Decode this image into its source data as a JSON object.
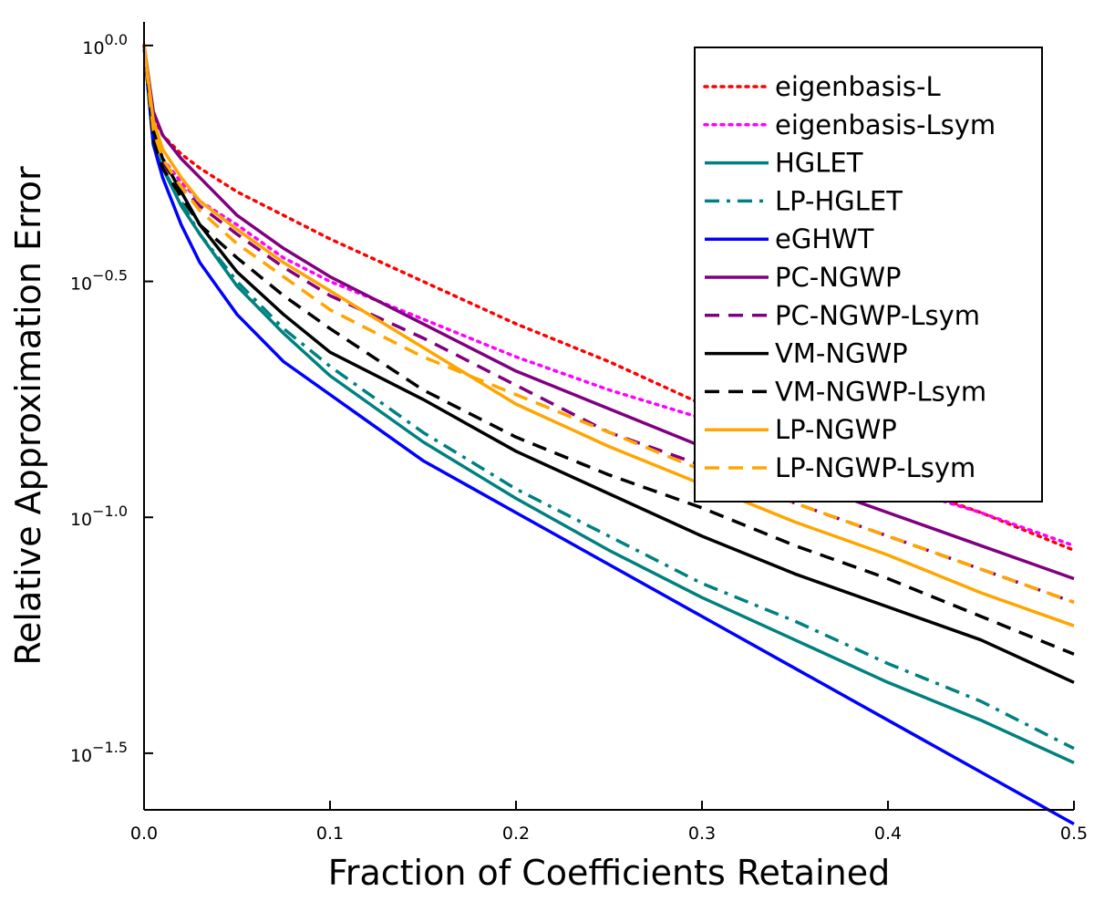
{
  "chart_data": {
    "type": "line",
    "title": "",
    "xlabel": "Fraction of Coefficients Retained",
    "ylabel": "Relative Approximation Error",
    "y_scale": "log10",
    "xlim": [
      0.0,
      0.5
    ],
    "ylim_log10": [
      -1.62,
      0.05
    ],
    "x_ticks": [
      {
        "value": 0.0,
        "label": "0.0"
      },
      {
        "value": 0.1,
        "label": "0.1"
      },
      {
        "value": 0.2,
        "label": "0.2"
      },
      {
        "value": 0.3,
        "label": "0.3"
      },
      {
        "value": 0.4,
        "label": "0.4"
      },
      {
        "value": 0.5,
        "label": "0.5"
      }
    ],
    "y_ticks": [
      {
        "log10": 0.0,
        "base": "10",
        "exp": "0.0"
      },
      {
        "log10": -0.5,
        "base": "10",
        "exp": "−0.5"
      },
      {
        "log10": -1.0,
        "base": "10",
        "exp": "−1.0"
      },
      {
        "log10": -1.5,
        "base": "10",
        "exp": "−1.5"
      }
    ],
    "grid": false,
    "legend_position": "top-right",
    "x": [
      0.0,
      0.005,
      0.01,
      0.02,
      0.03,
      0.05,
      0.075,
      0.1,
      0.15,
      0.2,
      0.25,
      0.3,
      0.35,
      0.4,
      0.45,
      0.5
    ],
    "series": [
      {
        "name": "eigenbasis-L",
        "color": "#ff0000",
        "style": "dotted",
        "values_log10": [
          0.0,
          -0.15,
          -0.19,
          -0.23,
          -0.26,
          -0.31,
          -0.36,
          -0.41,
          -0.5,
          -0.59,
          -0.67,
          -0.76,
          -0.84,
          -0.92,
          -0.99,
          -1.07
        ]
      },
      {
        "name": "eigenbasis-Lsym",
        "color": "#ff00ff",
        "style": "dotted",
        "values_log10": [
          0.0,
          -0.18,
          -0.24,
          -0.29,
          -0.33,
          -0.38,
          -0.45,
          -0.5,
          -0.58,
          -0.66,
          -0.73,
          -0.79,
          -0.86,
          -0.93,
          -0.99,
          -1.06
        ]
      },
      {
        "name": "HGLET",
        "color": "#008080",
        "style": "solid",
        "values_log10": [
          0.0,
          -0.21,
          -0.26,
          -0.34,
          -0.4,
          -0.51,
          -0.61,
          -0.7,
          -0.84,
          -0.96,
          -1.07,
          -1.17,
          -1.26,
          -1.35,
          -1.43,
          -1.52
        ]
      },
      {
        "name": "LP-HGLET",
        "color": "#008080",
        "style": "dashdot",
        "values_log10": [
          0.0,
          -0.21,
          -0.26,
          -0.33,
          -0.4,
          -0.5,
          -0.6,
          -0.68,
          -0.82,
          -0.94,
          -1.04,
          -1.14,
          -1.22,
          -1.31,
          -1.39,
          -1.49
        ]
      },
      {
        "name": "eGHWT",
        "color": "#0000ff",
        "style": "solid",
        "values_log10": [
          0.0,
          -0.21,
          -0.28,
          -0.38,
          -0.46,
          -0.57,
          -0.67,
          -0.74,
          -0.88,
          -0.99,
          -1.1,
          -1.21,
          -1.32,
          -1.43,
          -1.54,
          -1.65
        ]
      },
      {
        "name": "PC-NGWP",
        "color": "#800080",
        "style": "solid",
        "values_log10": [
          0.0,
          -0.14,
          -0.19,
          -0.24,
          -0.28,
          -0.36,
          -0.43,
          -0.49,
          -0.59,
          -0.69,
          -0.77,
          -0.85,
          -0.92,
          -0.99,
          -1.06,
          -1.13
        ]
      },
      {
        "name": "PC-NGWP-Lsym",
        "color": "#800080",
        "style": "dashed",
        "values_log10": [
          0.0,
          -0.2,
          -0.25,
          -0.3,
          -0.34,
          -0.4,
          -0.47,
          -0.53,
          -0.62,
          -0.72,
          -0.82,
          -0.89,
          -0.97,
          -1.04,
          -1.11,
          -1.18
        ]
      },
      {
        "name": "VM-NGWP",
        "color": "#000000",
        "style": "solid",
        "values_log10": [
          0.0,
          -0.18,
          -0.24,
          -0.31,
          -0.38,
          -0.48,
          -0.57,
          -0.65,
          -0.75,
          -0.86,
          -0.95,
          -1.04,
          -1.12,
          -1.19,
          -1.26,
          -1.35
        ]
      },
      {
        "name": "VM-NGWP-Lsym",
        "color": "#000000",
        "style": "dashed",
        "values_log10": [
          0.0,
          -0.2,
          -0.26,
          -0.32,
          -0.38,
          -0.45,
          -0.53,
          -0.6,
          -0.73,
          -0.83,
          -0.91,
          -0.98,
          -1.06,
          -1.13,
          -1.21,
          -1.29
        ]
      },
      {
        "name": "LP-NGWP",
        "color": "#ffa500",
        "style": "solid",
        "values_log10": [
          0.0,
          -0.16,
          -0.22,
          -0.28,
          -0.33,
          -0.39,
          -0.46,
          -0.52,
          -0.64,
          -0.76,
          -0.85,
          -0.93,
          -1.01,
          -1.08,
          -1.16,
          -1.23
        ]
      },
      {
        "name": "LP-NGWP-Lsym",
        "color": "#ffa500",
        "style": "dashed",
        "values_log10": [
          0.0,
          -0.18,
          -0.24,
          -0.3,
          -0.35,
          -0.42,
          -0.49,
          -0.56,
          -0.66,
          -0.74,
          -0.82,
          -0.9,
          -0.97,
          -1.04,
          -1.11,
          -1.18
        ]
      }
    ]
  }
}
